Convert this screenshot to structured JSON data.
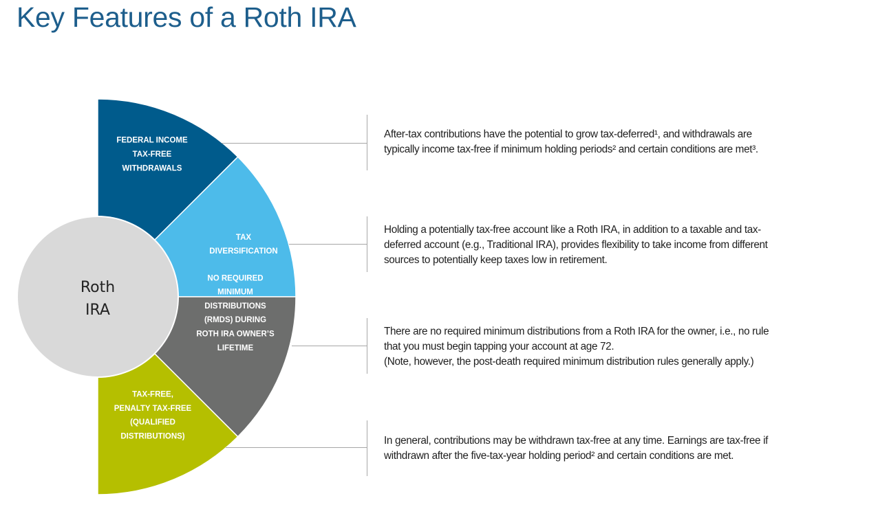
{
  "title": "Key Features of a Roth IRA",
  "center": {
    "lines": [
      "Roth",
      "IRA"
    ],
    "color": "#d9d9d9"
  },
  "segments": [
    {
      "lines": [
        "FEDERAL INCOME",
        "TAX-FREE",
        "WITHDRAWALS"
      ],
      "color": "#005b8c",
      "description": [
        "After-tax contributions have the potential to grow tax-deferred¹, and withdrawals are",
        "typically income tax-free if minimum holding periods² and certain conditions are met³."
      ]
    },
    {
      "lines": [
        "TAX",
        "DIVERSIFICATION"
      ],
      "color": "#4dbbea",
      "description": [
        "Holding a potentially tax-free account like a Roth IRA, in addition to a taxable and tax-",
        "deferred account (e.g., Traditional IRA), provides flexibility to take income from different",
        "sources to potentially keep taxes low in retirement."
      ]
    },
    {
      "lines": [
        "NO REQUIRED",
        "MINIMUM",
        "DISTRIBUTIONS",
        "(RMDS) DURING",
        "ROTH IRA OWNER’S",
        "LIFETIME"
      ],
      "color": "#6d6e6d",
      "description": [
        "There are no required minimum distributions from a Roth IRA for the owner, i.e., no rule",
        "that you must begin tapping your account at age 72.",
        "(Note, however, the post-death required minimum distribution rules generally apply.)"
      ]
    },
    {
      "lines": [
        "TAX-FREE,",
        "PENALTY TAX-FREE",
        "(QUALIFIED",
        "DISTRIBUTIONS)"
      ],
      "color": "#b5bf00",
      "description": [
        "In general, contributions may be withdrawn tax-free at any time. Earnings are tax-free if",
        "withdrawn after the five-tax-year holding period² and certain conditions are met."
      ]
    }
  ]
}
